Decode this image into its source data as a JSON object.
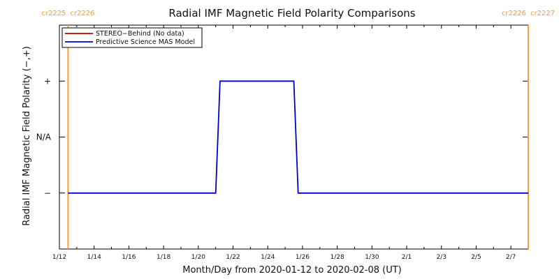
{
  "chart_data": {
    "type": "line",
    "title": "Radial IMF Magnetic Field Polarity Comparisons",
    "xlabel": "Month/Day from 2020-01-12 to 2020-02-08 (UT)",
    "ylabel": "Radial IMF Magnetic Field Polarity (−,+)",
    "x_start": "2020-01-12",
    "x_end": "2020-02-08",
    "x_ticks": [
      "1/12",
      "1/14",
      "1/16",
      "1/18",
      "1/20",
      "1/22",
      "1/24",
      "1/26",
      "1/28",
      "1/30",
      "2/1",
      "2/3",
      "2/5",
      "2/7"
    ],
    "y_categories": [
      "−",
      "N/A",
      "+"
    ],
    "ylim": [
      -2,
      2
    ],
    "legend_position": "top-left",
    "series": [
      {
        "name": "STEREO−Behind (No data)",
        "color": "#c00000",
        "x": [],
        "y": []
      },
      {
        "name": "Predictive Science MAS Model",
        "color": "#0000cc",
        "x": [
          "2020-01-12T12:00",
          "2020-01-21T00:00",
          "2020-01-21T06:00",
          "2020-01-25T12:00",
          "2020-01-25T18:00",
          "2020-02-08T00:00"
        ],
        "y": [
          -1,
          -1,
          1,
          1,
          -1,
          -1
        ]
      }
    ],
    "carrington_markers": [
      {
        "date": "2020-01-12T12:00",
        "left_label": "cr2225",
        "right_label": "cr2226",
        "color": "#f5a030"
      },
      {
        "date": "2020-02-08T00:00",
        "left_label": "cr2226",
        "right_label": "cr2227",
        "color": "#f5a030"
      }
    ]
  }
}
